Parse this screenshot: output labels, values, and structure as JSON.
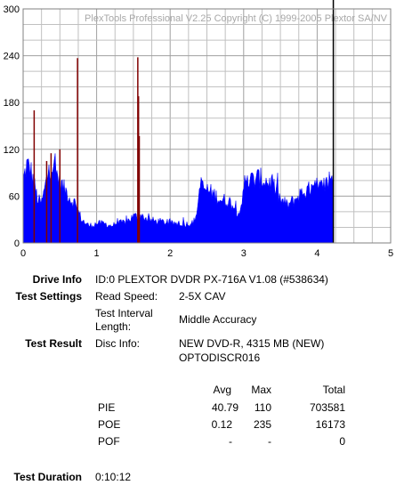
{
  "chart_data": {
    "type": "area",
    "title": "PlexTools Professional V2.25 Copyright (C) 1999-2005 Plextor SA/NV",
    "xlabel": "",
    "ylabel": "",
    "xlim": [
      0,
      5
    ],
    "ylim": [
      0,
      300
    ],
    "x_ticks": [
      "0",
      "1",
      "2",
      "3",
      "4",
      "5"
    ],
    "y_ticks": [
      "0",
      "60",
      "120",
      "180",
      "240",
      "300"
    ],
    "grid": true,
    "colors": {
      "pie": "#0000ff",
      "poe": "#800000",
      "end_marker": "#000000",
      "grid": "#c0c0c0"
    },
    "end_marker_x": 4.22,
    "pie_profile": {
      "x": [
        0.0,
        0.05,
        0.1,
        0.15,
        0.2,
        0.25,
        0.3,
        0.35,
        0.4,
        0.45,
        0.5,
        0.55,
        0.6,
        0.65,
        0.7,
        0.75,
        0.8,
        0.85,
        0.9,
        1.0,
        1.1,
        1.2,
        1.3,
        1.4,
        1.5,
        1.6,
        1.7,
        1.8,
        1.9,
        2.0,
        2.1,
        2.2,
        2.3,
        2.35,
        2.4,
        2.5,
        2.6,
        2.7,
        2.8,
        2.9,
        2.95,
        3.0,
        3.1,
        3.2,
        3.3,
        3.4,
        3.5,
        3.6,
        3.7,
        3.8,
        3.9,
        4.0,
        4.1,
        4.15,
        4.2,
        4.22
      ],
      "y": [
        80,
        100,
        95,
        75,
        55,
        50,
        72,
        95,
        100,
        90,
        80,
        70,
        65,
        55,
        52,
        40,
        30,
        25,
        22,
        25,
        25,
        22,
        25,
        27,
        34,
        35,
        30,
        28,
        27,
        25,
        25,
        24,
        26,
        30,
        72,
        68,
        62,
        55,
        54,
        42,
        38,
        75,
        80,
        83,
        80,
        75,
        55,
        48,
        56,
        65,
        68,
        70,
        72,
        78,
        85,
        85
      ]
    },
    "poe_spikes": [
      {
        "x": 0.15,
        "y": 170
      },
      {
        "x": 0.32,
        "y": 105
      },
      {
        "x": 0.38,
        "y": 115
      },
      {
        "x": 0.5,
        "y": 120
      },
      {
        "x": 0.74,
        "y": 237
      },
      {
        "x": 1.56,
        "y": 238
      },
      {
        "x": 1.57,
        "y": 188
      },
      {
        "x": 1.58,
        "y": 137
      }
    ]
  },
  "info": {
    "drive_label": "Drive Info",
    "drive_value": "ID:0 PLEXTOR DVDR PX-716A V1.08 (#538634)",
    "settings_label": "Test Settings",
    "read_speed_label": "Read Speed:",
    "read_speed_value": "2-5X CAV",
    "interval_label_1": "Test Interval",
    "interval_label_2": "Length:",
    "interval_value": "Middle Accuracy",
    "result_label": "Test Result",
    "disc_info_label": "Disc Info:",
    "disc_info_value_1": "NEW DVD-R, 4315 MB (NEW)",
    "disc_info_value_2": "OPTODISCR016",
    "duration_label": "Test Duration",
    "duration_value": "0:10:12"
  },
  "stats": {
    "headers": {
      "avg": "Avg",
      "max": "Max",
      "total": "Total"
    },
    "rows": [
      {
        "name": "PIE",
        "avg": "40.79",
        "max": "110",
        "total": "703581"
      },
      {
        "name": "POE",
        "avg": "0.12",
        "max": "235",
        "total": "16173"
      },
      {
        "name": "POF",
        "avg": "-",
        "max": "-",
        "total": "0"
      }
    ]
  }
}
